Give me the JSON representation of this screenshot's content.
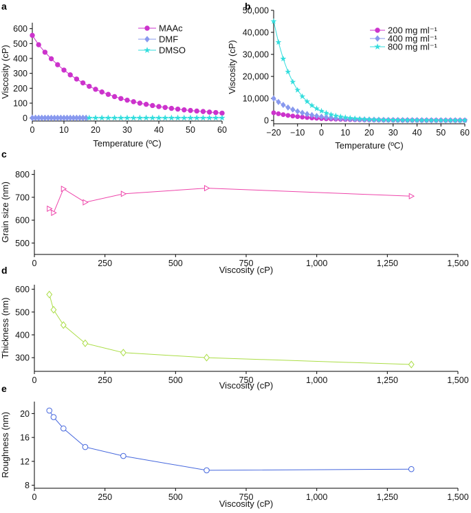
{
  "chart_data": [
    {
      "panel": "a",
      "type": "line",
      "xlabel": "Temperature (ºC)",
      "ylabel": "Viscosity (cP)",
      "xlim": [
        0,
        60
      ],
      "ylim": [
        -20,
        640
      ],
      "xticks": [
        0,
        10,
        20,
        30,
        40,
        50,
        60
      ],
      "yticks": [
        0,
        100,
        200,
        300,
        400,
        500,
        600
      ],
      "legend_position": "top-right",
      "series": [
        {
          "name": "MAAc",
          "color": "#cc33cc",
          "marker": "circle",
          "x": [
            0,
            2,
            4,
            6,
            8,
            10,
            12,
            14,
            16,
            18,
            20,
            22,
            24,
            26,
            28,
            30,
            32,
            34,
            36,
            38,
            40,
            42,
            44,
            46,
            48,
            50,
            52,
            54,
            56,
            58,
            60
          ],
          "y": [
            555,
            492,
            442,
            398,
            358,
            322,
            290,
            262,
            236,
            213,
            193,
            175,
            159,
            144,
            131,
            120,
            110,
            100,
            92,
            84,
            77,
            71,
            65,
            60,
            55,
            51,
            47,
            44,
            40,
            37,
            33
          ]
        },
        {
          "name": "DMF",
          "color": "#8899ee",
          "marker": "diamond",
          "x": [
            0,
            1,
            2,
            3,
            4,
            5,
            6,
            7,
            8,
            9,
            10,
            11,
            12,
            13,
            14,
            15,
            16,
            17
          ],
          "y": [
            1,
            1,
            1,
            1,
            1,
            1,
            1,
            1,
            1,
            1,
            1,
            1,
            1,
            1,
            1,
            1,
            1,
            1
          ]
        },
        {
          "name": "DMSO",
          "color": "#33dddd",
          "marker": "star",
          "x": [
            18,
            20,
            22,
            24,
            26,
            28,
            30,
            32,
            34,
            36,
            38,
            40,
            42,
            44,
            46,
            48,
            50,
            52,
            54,
            56,
            58,
            60
          ],
          "y": [
            1,
            1,
            1,
            1,
            1,
            1,
            1,
            1,
            1,
            1,
            1,
            1,
            1,
            1,
            1,
            1,
            1,
            1,
            1,
            1,
            1,
            1
          ]
        }
      ]
    },
    {
      "panel": "b",
      "type": "line",
      "xlabel": "Temperature (ºC)",
      "ylabel": "Viscosity (cP)",
      "xlim": [
        -20,
        60
      ],
      "ylim": [
        -1500,
        50000
      ],
      "xticks": [
        -20,
        -10,
        0,
        10,
        20,
        30,
        40,
        50,
        60
      ],
      "xtick_labels": [
        "−20",
        "−10",
        "0",
        "10",
        "20",
        "30",
        "40",
        "50",
        "60"
      ],
      "yticks": [
        0,
        10000,
        20000,
        30000,
        40000,
        50000
      ],
      "ytick_labels": [
        "0",
        "10,000",
        "20,000",
        "30,000",
        "40,000",
        "50,000"
      ],
      "legend_position": "top-right",
      "series": [
        {
          "name": "200 mg ml⁻¹",
          "color": "#cc33cc",
          "marker": "circle",
          "x": [
            -20,
            -18,
            -16,
            -14,
            -12,
            -10,
            -8,
            -6,
            -4,
            -2,
            0,
            2,
            4,
            6,
            8,
            10,
            12,
            14,
            16,
            18,
            20,
            22,
            24,
            26,
            28,
            30,
            32,
            34,
            36,
            38,
            40,
            42,
            44,
            46,
            48,
            50,
            52,
            54,
            56,
            58,
            60
          ],
          "y": [
            3500,
            3050,
            2650,
            2300,
            2000,
            1750,
            1530,
            1330,
            1160,
            1010,
            880,
            770,
            670,
            590,
            520,
            460,
            400,
            360,
            320,
            290,
            260,
            240,
            220,
            200,
            180,
            170,
            160,
            150,
            140,
            130,
            120,
            110,
            100,
            95,
            90,
            85,
            80,
            75,
            70,
            65,
            60
          ]
        },
        {
          "name": "400 mg ml⁻¹",
          "color": "#8899ee",
          "marker": "diamond",
          "x": [
            -20,
            -18,
            -16,
            -14,
            -12,
            -10,
            -8,
            -6,
            -4,
            -2,
            0,
            2,
            4,
            6,
            8,
            10,
            12,
            14,
            16,
            18,
            20,
            22,
            24,
            26,
            28,
            30,
            32,
            34,
            36,
            38,
            40,
            42,
            44,
            46,
            48,
            50,
            52,
            54,
            56,
            58,
            60
          ],
          "y": [
            10000,
            8400,
            7050,
            5900,
            4950,
            4150,
            3480,
            2920,
            2450,
            2050,
            1720,
            1450,
            1220,
            1030,
            870,
            740,
            630,
            540,
            460,
            400,
            350,
            310,
            270,
            240,
            210,
            190,
            170,
            150,
            140,
            130,
            120,
            110,
            100,
            95,
            90,
            85,
            80,
            75,
            70,
            65,
            60
          ]
        },
        {
          "name": "800 mg ml⁻¹",
          "color": "#33dddd",
          "marker": "star",
          "x": [
            -20,
            -18,
            -16,
            -14,
            -12,
            -10,
            -8,
            -6,
            -4,
            -2,
            0,
            2,
            4,
            6,
            8,
            10,
            12,
            14,
            16,
            18,
            20,
            22,
            24,
            26,
            28,
            30,
            32,
            34,
            36,
            38,
            40,
            42,
            44,
            46,
            48,
            50,
            52,
            54,
            56,
            58,
            60
          ],
          "y": [
            45000,
            35500,
            28000,
            22100,
            17500,
            13800,
            10900,
            8600,
            6800,
            5400,
            4300,
            3400,
            2700,
            2150,
            1720,
            1380,
            1110,
            900,
            730,
            600,
            490,
            410,
            340,
            290,
            250,
            220,
            190,
            170,
            150,
            140,
            130,
            120,
            110,
            100,
            95,
            90,
            85,
            80,
            75,
            70,
            65
          ]
        }
      ]
    },
    {
      "panel": "c",
      "type": "line",
      "xlabel": "Viscosity (cP)",
      "ylabel": "Grain size (nm)",
      "xlim": [
        0,
        1500
      ],
      "ylim": [
        450,
        820
      ],
      "xticks": [
        0,
        250,
        500,
        750,
        1000,
        1250,
        1500
      ],
      "xtick_labels": [
        "0",
        "250",
        "500",
        "750",
        "1,000",
        "1,250",
        "1,500"
      ],
      "yticks": [
        500,
        600,
        700,
        800
      ],
      "series": [
        {
          "color": "#ee44aa",
          "marker": "triangle-right",
          "x": [
            53,
            68,
            103,
            180,
            315,
            610,
            1335
          ],
          "y": [
            650,
            632,
            737,
            678,
            715,
            740,
            705
          ]
        }
      ]
    },
    {
      "panel": "d",
      "type": "line",
      "xlabel": "Viscosity (cP)",
      "ylabel": "Thickness (nm)",
      "xlim": [
        0,
        1500
      ],
      "ylim": [
        240,
        620
      ],
      "xticks": [
        0,
        250,
        500,
        750,
        1000,
        1250,
        1500
      ],
      "xtick_labels": [
        "0",
        "250",
        "500",
        "750",
        "1,000",
        "1,250",
        "1,500"
      ],
      "yticks": [
        300,
        400,
        500,
        600
      ],
      "series": [
        {
          "color": "#aadd44",
          "marker": "diamond",
          "x": [
            53,
            68,
            103,
            180,
            315,
            610,
            1335
          ],
          "y": [
            577,
            510,
            443,
            363,
            322,
            300,
            270
          ]
        }
      ]
    },
    {
      "panel": "e",
      "type": "line",
      "xlabel": "Viscosity (cP)",
      "ylabel": "Roughness (nm)",
      "xlim": [
        0,
        1500
      ],
      "ylim": [
        7.5,
        22
      ],
      "xticks": [
        0,
        250,
        500,
        750,
        1000,
        1250,
        1500
      ],
      "xtick_labels": [
        "0",
        "250",
        "500",
        "750",
        "1,000",
        "1,250",
        "1,500"
      ],
      "yticks": [
        8,
        12,
        16,
        20
      ],
      "series": [
        {
          "color": "#4466dd",
          "marker": "circle",
          "x": [
            53,
            68,
            103,
            180,
            315,
            610,
            1335
          ],
          "y": [
            20.5,
            19.4,
            17.5,
            14.4,
            12.9,
            10.5,
            10.7
          ]
        }
      ]
    }
  ]
}
